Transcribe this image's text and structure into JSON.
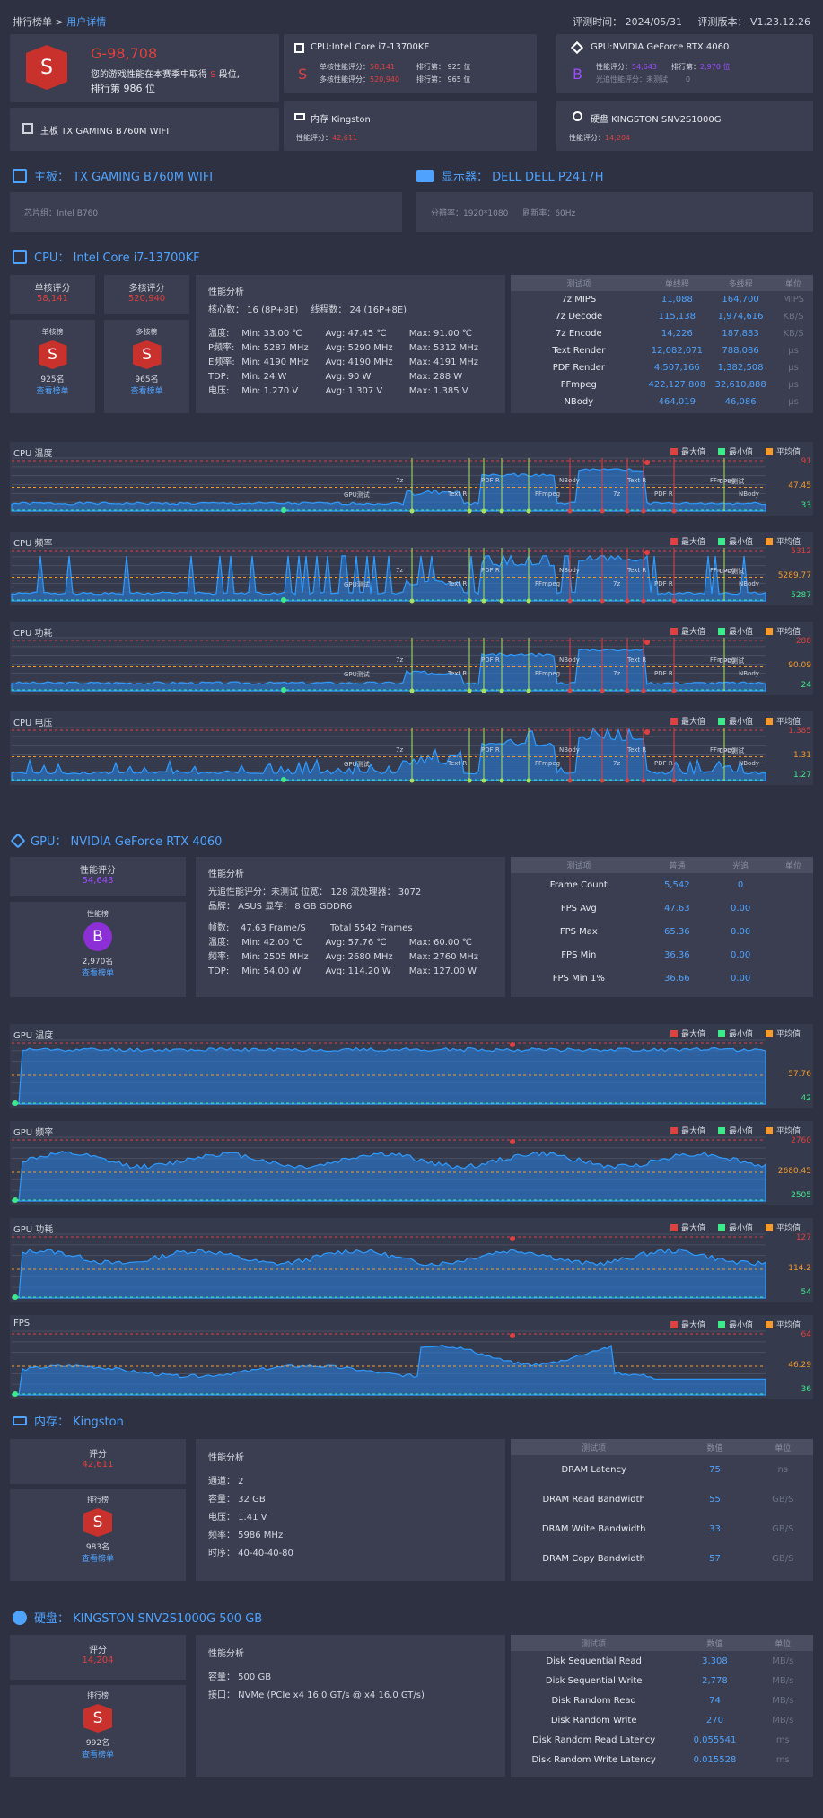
{
  "colors": {
    "accent": "#4fa3ff",
    "red": "#e0403f",
    "green": "#3dea8a",
    "orange": "#f59a2b",
    "purple": "#9d4dff"
  },
  "header": {
    "breadcrumb_root": "排行榜单 >",
    "breadcrumb_current": "用户详情",
    "eval_time": "评测时间： 2024/05/31",
    "eval_version": "评测版本： V1.23.12.26"
  },
  "summary": {
    "badge": "S",
    "score": "G-98,708",
    "desc1": "您的游戏性能在本赛季中取得",
    "desc_grade": "S",
    "desc2": "段位,",
    "rank": "排行第 986 位",
    "mobo": "主板 TX GAMING B760M WIFI",
    "cpu": {
      "title": "CPU:Intel Core i7-13700KF",
      "badge": "S",
      "single_label": "单核性能评分：",
      "single": "58,141",
      "single_rank_label": "排行第：",
      "single_rank": "925 位",
      "multi_label": "多核性能评分：",
      "multi": "520,940",
      "multi_rank_label": "排行第：",
      "multi_rank": "965 位"
    },
    "gpu": {
      "title": "GPU:NVIDIA GeForce RTX 4060",
      "badge": "B",
      "perf_label": "性能评分：",
      "perf": "54,643",
      "rank_label": "排行第：",
      "rank": "2,970 位",
      "rt_label": "光追性能评分：",
      "rt": "未测试",
      "rt_rank": "0"
    },
    "mem": {
      "title": "内存 Kingston",
      "label": "性能评分：",
      "value": "42,611"
    },
    "disk": {
      "title": "硬盘 KINGSTON SNV2S1000G",
      "label": "性能评分：",
      "value": "14,204"
    }
  },
  "mobo_sec": {
    "title": "主板： TX GAMING B760M WIFI",
    "chipset": "芯片组：Intel B760"
  },
  "monitor_sec": {
    "title": "显示器： DELL DELL P2417H",
    "resolution": "分辨率：1920*1080",
    "refresh": "刷新率：60Hz"
  },
  "cpu_sec": {
    "title": "CPU： Intel Core i7-13700KF",
    "single_label": "单核评分",
    "single": "58,141",
    "multi_label": "多核评分",
    "multi": "520,940",
    "single_board": "单核榜",
    "single_rank": "925名",
    "multi_board": "多核榜",
    "multi_rank": "965名",
    "view": "查看榜单",
    "badge": "S",
    "analysis_title": "性能分析",
    "cores": "核心数： 16 (8P+8E)",
    "threads": "线程数： 24 (16P+8E)",
    "rows": [
      [
        "温度:",
        "Min: 33.00 ℃",
        "Avg: 47.45 ℃",
        "Max: 91.00 ℃"
      ],
      [
        "P频率:",
        "Min: 5287 MHz",
        "Avg: 5290 MHz",
        "Max: 5312 MHz"
      ],
      [
        "E频率:",
        "Min: 4190 MHz",
        "Avg: 4190 MHz",
        "Max: 4191 MHz"
      ],
      [
        "TDP:",
        "Min: 24 W",
        "Avg: 90 W",
        "Max: 288 W"
      ],
      [
        "电压:",
        "Min: 1.270 V",
        "Avg: 1.307 V",
        "Max: 1.385 V"
      ]
    ],
    "table": {
      "h": [
        "测试项",
        "单线程",
        "多线程",
        "单位"
      ],
      "rows": [
        [
          "7z MIPS",
          "11,088",
          "164,700",
          "MIPS"
        ],
        [
          "7z Decode",
          "115,138",
          "1,974,616",
          "KB/S"
        ],
        [
          "7z Encode",
          "14,226",
          "187,883",
          "KB/S"
        ],
        [
          "Text Render",
          "12,082,071",
          "788,086",
          "μs"
        ],
        [
          "PDF Render",
          "4,507,166",
          "1,382,508",
          "μs"
        ],
        [
          "FFmpeg",
          "422,127,808",
          "32,610,888",
          "μs"
        ],
        [
          "NBody",
          "464,019",
          "46,086",
          "μs"
        ]
      ]
    }
  },
  "legend": {
    "max": "最大值",
    "min": "最小值",
    "avg": "平均值"
  },
  "cpu_charts": [
    {
      "title": "CPU 温度",
      "max": "91",
      "avg": "47.45",
      "min": "33"
    },
    {
      "title": "CPU 频率",
      "max": "5312",
      "avg": "5289.77",
      "min": "5287"
    },
    {
      "title": "CPU 功耗",
      "max": "288",
      "avg": "90.09",
      "min": "24"
    },
    {
      "title": "CPU 电压",
      "max": "1.385",
      "avg": "1.31",
      "min": "1.27"
    }
  ],
  "phase_labels": [
    "7z",
    "Text R",
    "PDF R",
    "FFmpeg",
    "NBody",
    "7z",
    "Text R",
    "PDF R",
    "FFmpeg",
    "NBody",
    "CPU测试",
    "GPU测试"
  ],
  "gpu_sec": {
    "title": "GPU： NVIDIA GeForce RTX 4060",
    "perf_label": "性能评分",
    "perf": "54,643",
    "board": "性能榜",
    "badge": "B",
    "rank": "2,970名",
    "view": "查看榜单",
    "analysis_title": "性能分析",
    "line1": "光追性能评分：未测试   位宽： 128   流处理器： 3072",
    "line2": "品牌： ASUS   显存： 8 GB GDDR6",
    "fps_label": "帧数:",
    "fps_avg": "47.63 Frame/S",
    "fps_total": "Total 5542 Frames",
    "rows": [
      [
        "温度:",
        "Min: 42.00 ℃",
        "Avg: 57.76 ℃",
        "Max: 60.00 ℃"
      ],
      [
        "频率:",
        "Min: 2505 MHz",
        "Avg: 2680 MHz",
        "Max: 2760 MHz"
      ],
      [
        "TDP:",
        "Min: 54.00 W",
        "Avg: 114.20 W",
        "Max: 127.00 W"
      ]
    ],
    "table": {
      "h": [
        "测试项",
        "普通",
        "光追",
        "单位"
      ],
      "rows": [
        [
          "Frame Count",
          "5,542",
          "0",
          ""
        ],
        [
          "FPS Avg",
          "47.63",
          "0.00",
          ""
        ],
        [
          "FPS Max",
          "65.36",
          "0.00",
          ""
        ],
        [
          "FPS Min",
          "36.36",
          "0.00",
          ""
        ],
        [
          "FPS Min 1%",
          "36.66",
          "0.00",
          ""
        ]
      ]
    }
  },
  "gpu_charts": [
    {
      "title": "GPU 温度",
      "max": "",
      "avg": "57.76",
      "min": "42"
    },
    {
      "title": "GPU 频率",
      "max": "2760",
      "avg": "2680.45",
      "min": "2505"
    },
    {
      "title": "GPU 功耗",
      "max": "127",
      "avg": "114.2",
      "min": "54"
    },
    {
      "title": "FPS",
      "max": "64",
      "avg": "46.29",
      "min": "36"
    }
  ],
  "mem_sec": {
    "title": "内存： Kingston",
    "score_label": "评分",
    "score": "42,611",
    "board": "排行榜",
    "badge": "S",
    "rank": "983名",
    "view": "查看榜单",
    "analysis_title": "性能分析",
    "lines": [
      "通道： 2",
      "容量： 32 GB",
      "电压： 1.41 V",
      "频率： 5986 MHz",
      "时序： 40-40-40-80"
    ],
    "table": {
      "h": [
        "测试项",
        "数值",
        "单位"
      ],
      "rows": [
        [
          "DRAM Latency",
          "75",
          "ns"
        ],
        [
          "DRAM Read Bandwidth",
          "55",
          "GB/S"
        ],
        [
          "DRAM Write Bandwidth",
          "33",
          "GB/S"
        ],
        [
          "DRAM Copy Bandwidth",
          "57",
          "GB/S"
        ]
      ]
    }
  },
  "disk_sec": {
    "title": "硬盘： KINGSTON SNV2S1000G 500 GB",
    "score_label": "评分",
    "score": "14,204",
    "board": "排行榜",
    "badge": "S",
    "rank": "992名",
    "view": "查看榜单",
    "analysis_title": "性能分析",
    "lines": [
      "容量： 500 GB",
      "接口： NVMe (PCIe x4 16.0 GT/s @ x4 16.0 GT/s)"
    ],
    "table": {
      "h": [
        "测试项",
        "数值",
        "单位"
      ],
      "rows": [
        [
          "Disk Sequential Read",
          "3,308",
          "MB/s"
        ],
        [
          "Disk Sequential Write",
          "2,778",
          "MB/s"
        ],
        [
          "Disk Random Read",
          "74",
          "MB/s"
        ],
        [
          "Disk Random Write",
          "270",
          "MB/s"
        ],
        [
          "Disk Random Read Latency",
          "0.055541",
          "ms"
        ],
        [
          "Disk Random Write Latency",
          "0.015528",
          "ms"
        ]
      ]
    }
  }
}
